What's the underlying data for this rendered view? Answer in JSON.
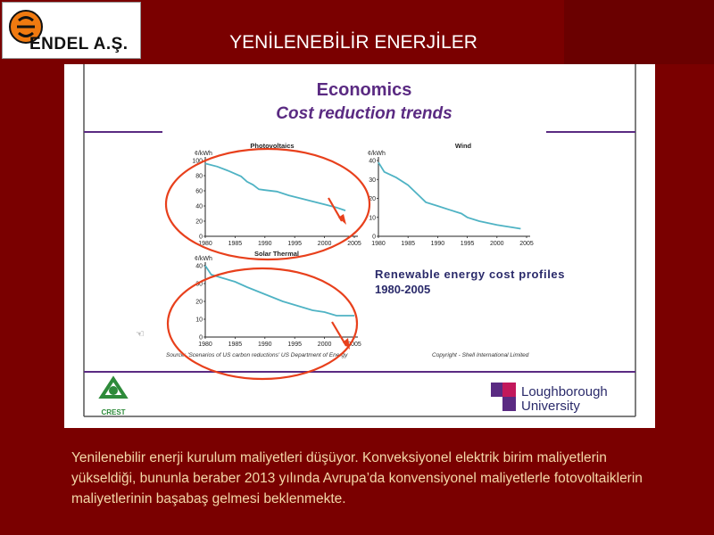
{
  "logo": {
    "text": "ENDEL A.Ş.",
    "icon": "endel-logo-icon"
  },
  "slide": {
    "title": "YENİLENEBİLİR ENERJİLER"
  },
  "embedded": {
    "heading1": "Economics",
    "heading2": "Cost reduction trends",
    "profile_title_1": "Renewable energy cost profiles",
    "profile_title_2": "1980-2005",
    "source": "Source: 'Scenarios of US carbon reductions' US Department of Energy",
    "copyright": "Copyright - Shell International Limited",
    "crest_label": "CREST",
    "university_1": "Loughborough",
    "university_2": "University"
  },
  "chart_data": [
    {
      "type": "line",
      "title": "Photovoltaics",
      "ylabel": "¢/kWh",
      "xlim": [
        1980,
        2005
      ],
      "ylim": [
        0,
        100
      ],
      "yticks": [
        0,
        20,
        40,
        60,
        80,
        100
      ],
      "xticks": [
        1980,
        1985,
        1990,
        1995,
        2000,
        2005
      ],
      "series": [
        {
          "x": [
            1980,
            1982,
            1984,
            1986,
            1987,
            1988,
            1989,
            1990,
            1992,
            1994,
            1996,
            1998,
            2000,
            2002,
            2003.5
          ],
          "y": [
            96,
            92,
            86,
            79,
            72,
            68,
            62,
            61,
            59,
            54,
            50,
            46,
            42,
            38,
            34
          ]
        }
      ]
    },
    {
      "type": "line",
      "title": "Wind",
      "ylabel": "¢/kWh",
      "xlim": [
        1980,
        2005
      ],
      "ylim": [
        0,
        40
      ],
      "yticks": [
        0,
        10,
        20,
        30,
        40
      ],
      "xticks": [
        1980,
        1985,
        1990,
        1995,
        2000,
        2005
      ],
      "series": [
        {
          "x": [
            1980,
            1981,
            1983,
            1985,
            1986,
            1987,
            1988,
            1990,
            1992,
            1994,
            1995,
            1997,
            2000,
            2002,
            2004
          ],
          "y": [
            39,
            34,
            31,
            27,
            24,
            21,
            18,
            16,
            14,
            12,
            10,
            8,
            6,
            5,
            4
          ]
        }
      ]
    },
    {
      "type": "line",
      "title": "Solar Thermal",
      "ylabel": "¢/kWh",
      "xlim": [
        1980,
        2005
      ],
      "ylim": [
        0,
        40
      ],
      "yticks": [
        0,
        10,
        20,
        30,
        40
      ],
      "xticks": [
        1980,
        1985,
        1990,
        1995,
        2000,
        2005
      ],
      "series": [
        {
          "x": [
            1980,
            1981,
            1983,
            1985,
            1987,
            1990,
            1993,
            1995,
            1998,
            2000,
            2002,
            2003,
            2005
          ],
          "y": [
            40,
            35,
            33,
            31,
            28,
            24,
            20,
            18,
            15,
            14,
            12,
            12,
            12
          ]
        }
      ]
    }
  ],
  "caption": "Yenilenebilir enerji kurulum maliyetleri düşüyor. Konveksiyonel elektrik birim maliyetlerin yükseldiği, bununla beraber 2013 yılında Avrupa’da konvensiyonel maliyetlerle fotovoltaiklerin maliyetlerinin başabaş gelmesi beklenmekte.",
  "colors": {
    "background": "#7a0000",
    "curve": "#4fb3c4",
    "circle": "#e8401c",
    "heading": "#5a2a82",
    "caption": "#f3d8a8"
  }
}
